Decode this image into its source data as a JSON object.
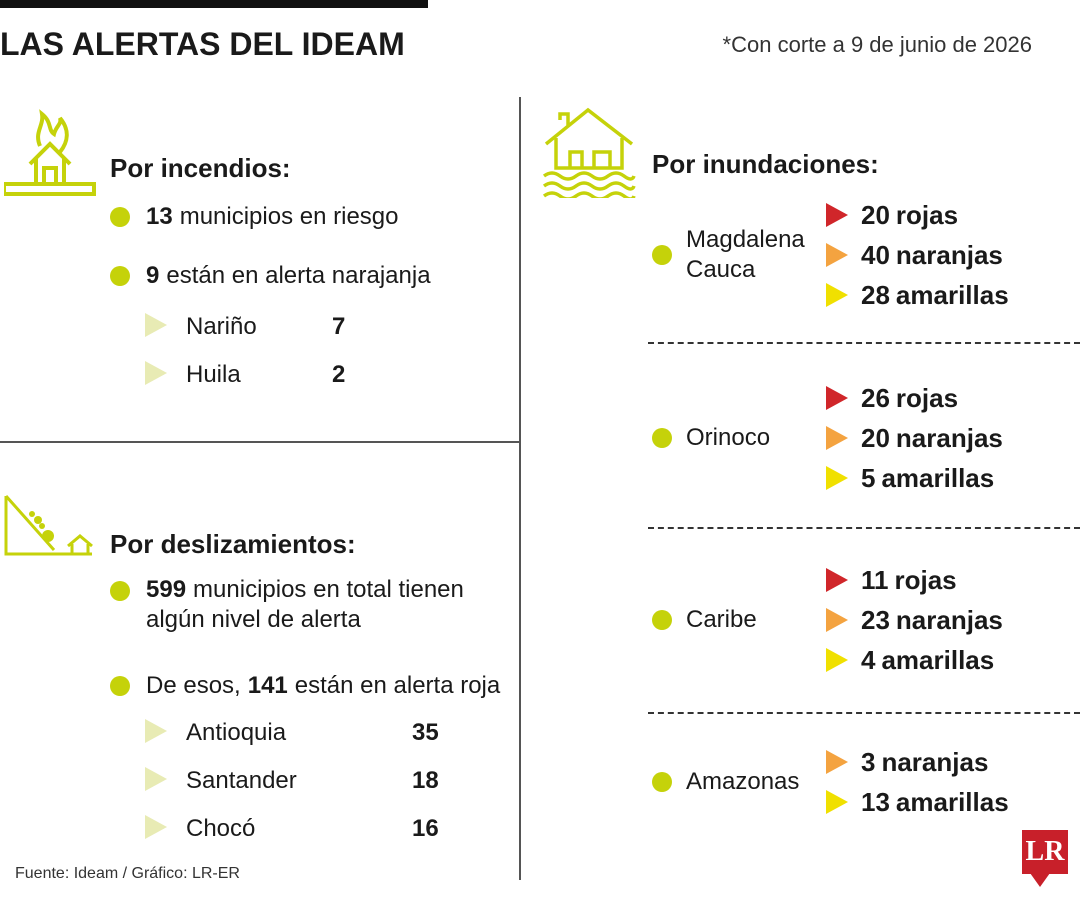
{
  "header": {
    "title": "LAS ALERTAS DEL IDEAM",
    "note": "*Con corte a 9 de junio de 2026"
  },
  "incendios": {
    "heading": "Por incendios:",
    "items": [
      {
        "number": 13,
        "text": "municipios en riesgo"
      },
      {
        "number": 9,
        "text": "están en alerta narajanja"
      }
    ],
    "departments": [
      {
        "name": "Nariño",
        "value": 7
      },
      {
        "name": "Huila",
        "value": 2
      }
    ]
  },
  "deslizamientos": {
    "heading": "Por deslizamientos:",
    "items": [
      {
        "number": 599,
        "text": "municipios en total tienen algún nivel de alerta"
      },
      {
        "prefix": "De esos,",
        "number": 141,
        "text": "están en alerta roja"
      }
    ],
    "departments": [
      {
        "name": "Antioquia",
        "value": 35
      },
      {
        "name": "Santander",
        "value": 18
      },
      {
        "name": "Chocó",
        "value": 16
      }
    ]
  },
  "inundaciones": {
    "heading": "Por inundaciones:",
    "colors": {
      "rojas": "#d0262a",
      "naranjas": "#f4a340",
      "amarillas": "#f0e000"
    },
    "regions": [
      {
        "name": "Magdalena Cauca",
        "alerts": [
          {
            "count": 20,
            "label": "rojas"
          },
          {
            "count": 40,
            "label": "naranjas"
          },
          {
            "count": 28,
            "label": "amarillas"
          }
        ]
      },
      {
        "name": "Orinoco",
        "alerts": [
          {
            "count": 26,
            "label": "rojas"
          },
          {
            "count": 20,
            "label": "naranjas"
          },
          {
            "count": 5,
            "label": "amarillas"
          }
        ]
      },
      {
        "name": "Caribe",
        "alerts": [
          {
            "count": 11,
            "label": "rojas"
          },
          {
            "count": 23,
            "label": "naranjas"
          },
          {
            "count": 4,
            "label": "amarillas"
          }
        ]
      },
      {
        "name": "Amazonas",
        "alerts": [
          {
            "count": 3,
            "label": "naranjas"
          },
          {
            "count": 13,
            "label": "amarillas"
          }
        ]
      }
    ]
  },
  "footer": {
    "source": "Fuente: Ideam / Gráfico: LR-ER",
    "logo": "LR"
  }
}
